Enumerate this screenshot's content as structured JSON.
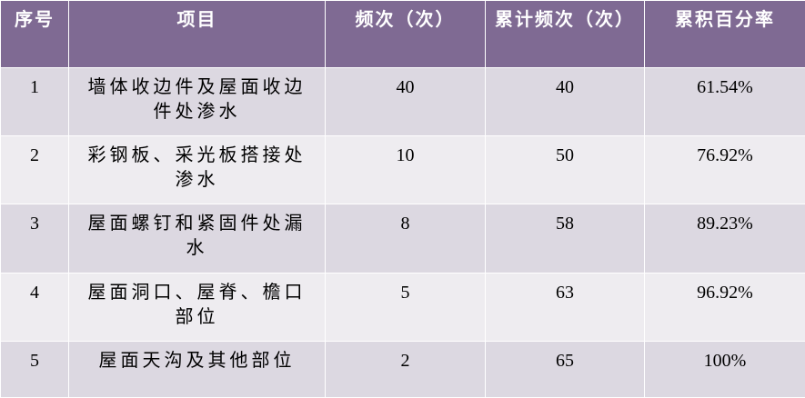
{
  "table": {
    "header": [
      "序号",
      "项目",
      "频次（次）",
      "累计频次（次）",
      "累积百分率"
    ],
    "rows": [
      [
        "1",
        "墙体收边件及屋面收边件处渗水",
        "40",
        "40",
        "61.54%"
      ],
      [
        "2",
        "彩钢板、采光板搭接处渗水",
        "10",
        "50",
        "76.92%"
      ],
      [
        "3",
        "屋面螺钉和紧固件处漏水",
        "8",
        "58",
        "89.23%"
      ],
      [
        "4",
        "屋面洞口、屋脊、檐口部位",
        "5",
        "63",
        "96.92%"
      ],
      [
        "5",
        "屋面天沟及其他部位",
        "2",
        "65",
        "100%"
      ]
    ]
  }
}
